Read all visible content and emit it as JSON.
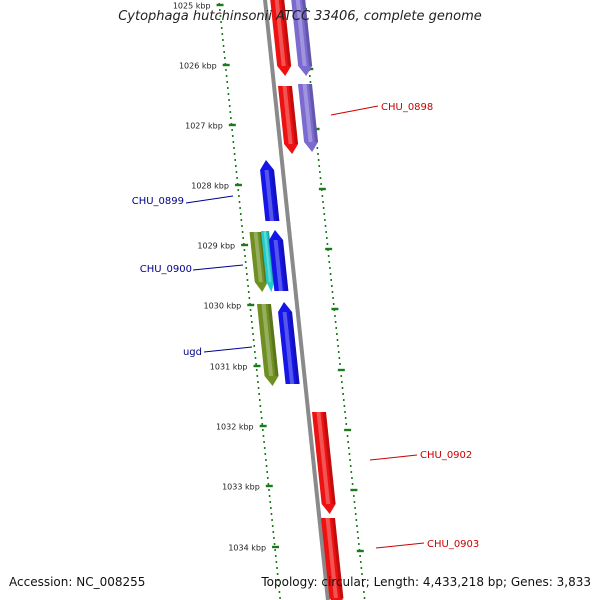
{
  "title": "Cytophaga hutchinsonii ATCC 33406, complete genome",
  "footer": {
    "accession": "Accession: NC_008255",
    "topology": "Topology: circular; Length: 4,433,218 bp; Genes: 3,833"
  },
  "colors": {
    "backbone": "#8a8a8a",
    "tick": "#1c7a1c",
    "gene_red": "#ee1111",
    "gene_purple": "#7b6bd1",
    "gene_blue": "#1515e8",
    "gene_olive": "#6f8f22",
    "gene_cyan": "#22cccc",
    "label_red": "#cc0000",
    "label_blue": "#00008b"
  },
  "ticks": [
    {
      "label": "1025 kbp"
    },
    {
      "label": "1026 kbp"
    },
    {
      "label": "1027 kbp"
    },
    {
      "label": "1028 kbp"
    },
    {
      "label": "1029 kbp"
    },
    {
      "label": "1030 kbp"
    },
    {
      "label": "1031 kbp"
    },
    {
      "label": "1032 kbp"
    },
    {
      "label": "1033 kbp"
    },
    {
      "label": "1034 kbp"
    }
  ],
  "gene_labels": [
    {
      "text": "CHU_0898",
      "color": "label_red"
    },
    {
      "text": "CHU_0899",
      "color": "label_blue"
    },
    {
      "text": "CHU_0900",
      "color": "label_blue"
    },
    {
      "text": "ugd",
      "color": "label_blue"
    },
    {
      "text": "CHU_0902",
      "color": "label_red"
    },
    {
      "text": "CHU_0903",
      "color": "label_red"
    }
  ]
}
